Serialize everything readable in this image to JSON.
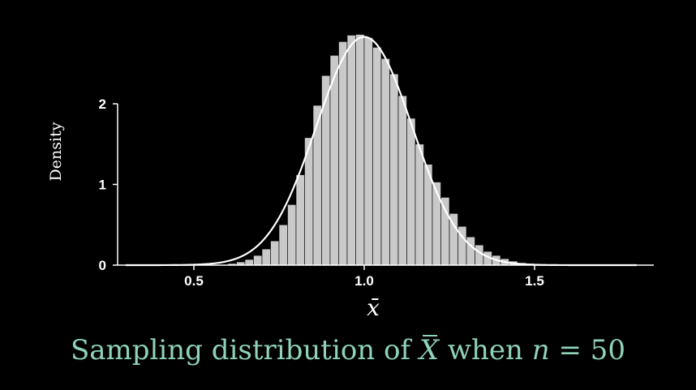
{
  "chart_data": {
    "type": "bar",
    "title": "",
    "xlabel": "x̄",
    "ylabel": "Density",
    "xlim": [
      0.3,
      1.85
    ],
    "ylim": [
      0,
      2.9
    ],
    "xticks": [
      "0.5",
      "1.0",
      "1.5"
    ],
    "yticks": [
      "0",
      "1",
      "2"
    ],
    "grid": false,
    "bin_width": 0.025,
    "bins": {
      "x_start": [
        0.6,
        0.625,
        0.65,
        0.675,
        0.7,
        0.725,
        0.75,
        0.775,
        0.8,
        0.825,
        0.85,
        0.875,
        0.9,
        0.925,
        0.95,
        0.975,
        1.0,
        1.025,
        1.05,
        1.075,
        1.1,
        1.125,
        1.15,
        1.175,
        1.2,
        1.225,
        1.25,
        1.275,
        1.3,
        1.325,
        1.35,
        1.375,
        1.4,
        1.425,
        1.45,
        1.475,
        1.5
      ],
      "density": [
        0.02,
        0.04,
        0.07,
        0.12,
        0.2,
        0.3,
        0.5,
        0.75,
        1.12,
        1.58,
        1.98,
        2.35,
        2.6,
        2.77,
        2.85,
        2.86,
        2.82,
        2.7,
        2.56,
        2.37,
        2.1,
        1.82,
        1.5,
        1.25,
        1.03,
        0.84,
        0.64,
        0.48,
        0.35,
        0.25,
        0.17,
        0.12,
        0.08,
        0.05,
        0.03,
        0.02,
        0.01
      ]
    },
    "curve": {
      "label": "normal density",
      "mean": 1.0,
      "sd": 0.141,
      "x_range": [
        0.3,
        1.8
      ]
    }
  },
  "caption": {
    "prefix": "Sampling distribution of ",
    "symbol": "X",
    "middle": " when ",
    "n_symbol": "n",
    "equals": " = 50"
  }
}
